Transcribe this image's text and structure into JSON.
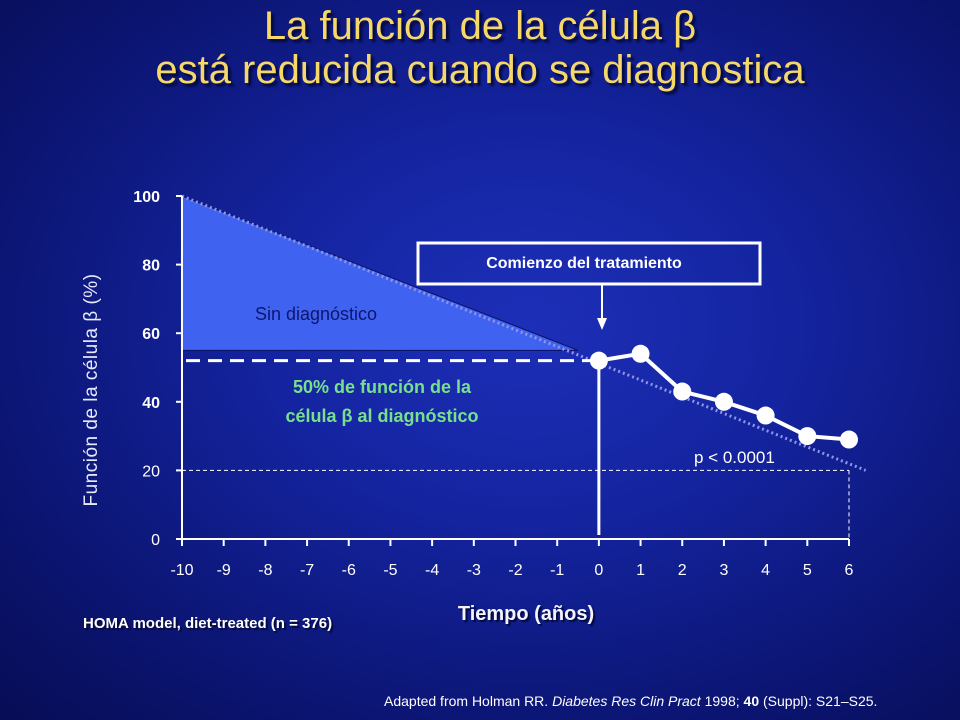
{
  "title": {
    "line1": "La función de la célula β",
    "line2": "está reducida cuando se diagnostica"
  },
  "footnote": "HOMA model, diet-treated (n = 376)",
  "citation": {
    "part1": "Adapted from Holman RR. ",
    "journal": "Diabetes Res Clin Pract",
    "part2": " 1998; ",
    "volume": "40",
    "part3": " (Suppl): S21–S25."
  },
  "colors": {
    "title": "#f5d76a",
    "triangle": "#3f63f0",
    "points": "#ffffff",
    "annotation_green": "#78e08c",
    "trend": "#8f95e8"
  },
  "chart_data": {
    "type": "line",
    "xlabel": "Tiempo (años)",
    "ylabel": "Función de la célula β (%)",
    "xlim": [
      -10,
      6
    ],
    "ylim": [
      0,
      100
    ],
    "x_ticks": [
      -10,
      -9,
      -8,
      -7,
      -6,
      -5,
      -4,
      -3,
      -2,
      -1,
      0,
      1,
      2,
      3,
      4,
      5,
      6
    ],
    "y_ticks": [
      0,
      20,
      40,
      60,
      80,
      100
    ],
    "series": [
      {
        "x": [
          0,
          1,
          2,
          3,
          4,
          5,
          6
        ],
        "values": [
          52,
          54,
          43,
          40,
          36,
          30,
          29
        ]
      }
    ],
    "trend_line": {
      "x": [
        -10,
        6.4
      ],
      "y": [
        100,
        20
      ]
    },
    "undiagnosed_region": {
      "label": "Sin diagnóstico",
      "x": [
        -10,
        -0.5
      ],
      "y_top": [
        100,
        55
      ],
      "y_bottom": 55
    },
    "diagnosis_level": {
      "y": 52,
      "label_line1": "50% de función de la",
      "label_line2": "célula β al diagnóstico"
    },
    "treatment_start": {
      "x": 0,
      "label": "Comienzo del tratamiento"
    },
    "reference_level": {
      "y": 20
    },
    "p_value_label": "p < 0.0001"
  }
}
